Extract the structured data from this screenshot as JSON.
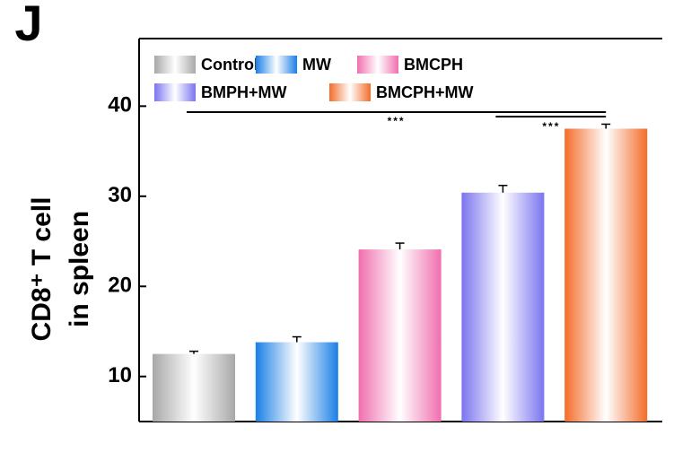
{
  "chart_data": {
    "type": "bar",
    "panel_label": "J",
    "ylabel": [
      "CD8⁺ T cell",
      "in spleen"
    ],
    "categories": [
      "Control",
      "MW",
      "BMCPH",
      "BMPH+MW",
      "BMCPH+MW"
    ],
    "values": [
      12.5,
      13.8,
      24.1,
      30.4,
      37.5
    ],
    "errors": [
      0.3,
      0.6,
      0.7,
      0.8,
      0.5
    ],
    "colors": [
      "#a8a8a8",
      "#1a7fe6",
      "#f06fae",
      "#7b74f0",
      "#f36c2a"
    ],
    "ylim": [
      5,
      47.5
    ],
    "yticks": [
      10,
      20,
      30,
      40
    ],
    "annotations": [
      "***",
      "***"
    ]
  }
}
